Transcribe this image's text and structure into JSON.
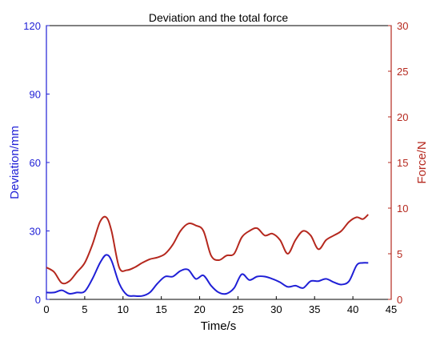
{
  "chart_data": {
    "type": "line",
    "title": "Deviation and the total force",
    "xlabel": "Time/s",
    "ylabel_left": "Deviation/mm",
    "ylabel_right": "Force/N",
    "xlim": [
      0,
      45
    ],
    "ylim_left": [
      0,
      120
    ],
    "ylim_right": [
      0,
      30
    ],
    "x_ticks": [
      0,
      5,
      10,
      15,
      20,
      25,
      30,
      35,
      40,
      45
    ],
    "y_left_ticks": [
      0,
      30,
      60,
      90,
      120
    ],
    "y_right_ticks": [
      0,
      5,
      10,
      15,
      20,
      25,
      30
    ],
    "grid": false,
    "colors": {
      "left_axis": "#1f1fd6",
      "right_axis": "#b5281e",
      "axis": "#000000"
    },
    "series": [
      {
        "axis": "left",
        "color": "#1f1fd6",
        "x": [
          0,
          1,
          2,
          3,
          4,
          5,
          6,
          7,
          7.8,
          8.5,
          9.5,
          10.5,
          11.5,
          12.5,
          13.5,
          14.5,
          15.5,
          16.5,
          17.5,
          18.5,
          19.5,
          20.5,
          21.5,
          22.5,
          23.5,
          24.5,
          25.5,
          26.5,
          27.5,
          28.5,
          29.5,
          30.5,
          31.5,
          32.5,
          33.5,
          34.5,
          35.5,
          36.5,
          37.5,
          38.5,
          39.5,
          40.5,
          41.3,
          42
        ],
        "y": [
          3,
          3,
          4,
          2.5,
          3,
          3.5,
          9,
          16,
          19.5,
          17,
          7,
          2,
          1.5,
          1.5,
          3,
          7,
          10,
          10,
          12.5,
          13,
          9,
          10.5,
          6,
          3,
          2.5,
          5,
          11,
          8.5,
          10,
          10,
          9,
          7.5,
          5.5,
          6,
          5,
          8,
          8,
          9,
          7.5,
          6.5,
          8,
          15,
          16,
          16
        ]
      },
      {
        "axis": "right",
        "color": "#b5281e",
        "x": [
          0,
          1,
          2,
          3,
          4,
          5,
          6,
          7,
          7.8,
          8.5,
          9.5,
          10.5,
          11.5,
          12.5,
          13.5,
          14.5,
          15.5,
          16.5,
          17.5,
          18.5,
          19.5,
          20.5,
          21.5,
          22.5,
          23.5,
          24.5,
          25.5,
          26.5,
          27.5,
          28.5,
          29.5,
          30.5,
          31.5,
          32.5,
          33.5,
          34.5,
          35.5,
          36.5,
          37.5,
          38.5,
          39.5,
          40.5,
          41.3,
          42
        ],
        "y": [
          3.5,
          3,
          1.8,
          2,
          3,
          4,
          6,
          8.5,
          9,
          7.5,
          3.5,
          3.2,
          3.5,
          4,
          4.4,
          4.6,
          5,
          6,
          7.5,
          8.3,
          8.1,
          7.5,
          4.8,
          4.3,
          4.8,
          5,
          6.8,
          7.5,
          7.8,
          7,
          7.2,
          6.5,
          5,
          6.5,
          7.5,
          7,
          5.5,
          6.5,
          7,
          7.5,
          8.5,
          9,
          8.8,
          9.3
        ]
      }
    ]
  }
}
